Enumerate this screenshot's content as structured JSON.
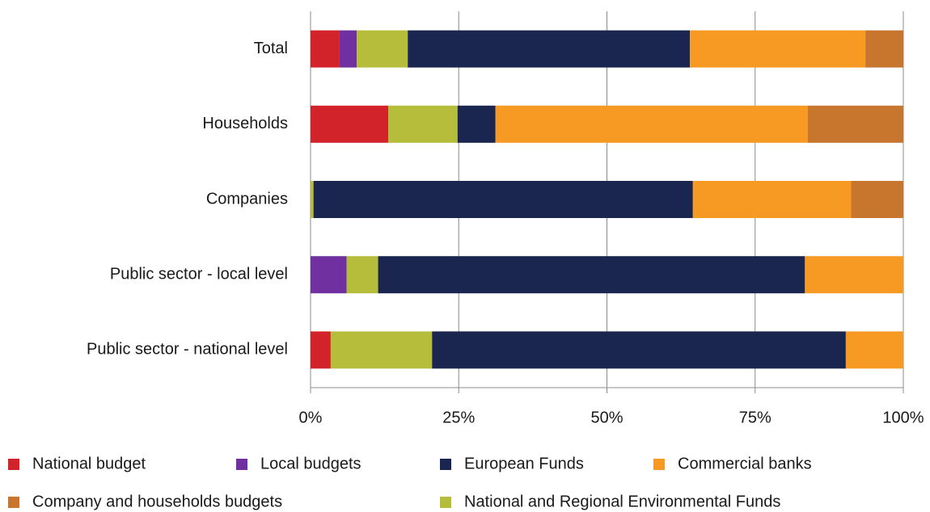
{
  "chart_data": {
    "type": "stacked_barh",
    "categories": [
      "Total",
      "Households",
      "Companies",
      "Public sector - local level",
      "Public sector - national level"
    ],
    "series": [
      {
        "name": "National budget",
        "color": "#d2232a",
        "values": [
          4.9,
          13.1,
          0,
          0,
          3.4
        ]
      },
      {
        "name": "Local budgets",
        "color": "#7030a0",
        "values": [
          2.9,
          0,
          0,
          6.1,
          0
        ]
      },
      {
        "name": "National and Regional Environmental Funds",
        "color": "#b5bd3a",
        "values": [
          8.6,
          11.7,
          0.5,
          5.3,
          17.1
        ]
      },
      {
        "name": "European Funds",
        "color": "#1a2550",
        "values": [
          47.6,
          6.4,
          64.0,
          72.0,
          69.8
        ]
      },
      {
        "name": "Commercial banks",
        "color": "#f79a23",
        "values": [
          29.6,
          52.7,
          26.7,
          16.6,
          9.7
        ]
      },
      {
        "name": "Company and households budgets",
        "color": "#c8762e",
        "values": [
          6.4,
          16.1,
          8.8,
          0,
          0
        ]
      }
    ],
    "xlim": [
      0,
      100
    ],
    "xticks": [
      {
        "value": 0,
        "label": "0%"
      },
      {
        "value": 25,
        "label": "25%"
      },
      {
        "value": 50,
        "label": "50%"
      },
      {
        "value": 75,
        "label": "75%"
      },
      {
        "value": 100,
        "label": "100%"
      }
    ],
    "grid": true
  }
}
